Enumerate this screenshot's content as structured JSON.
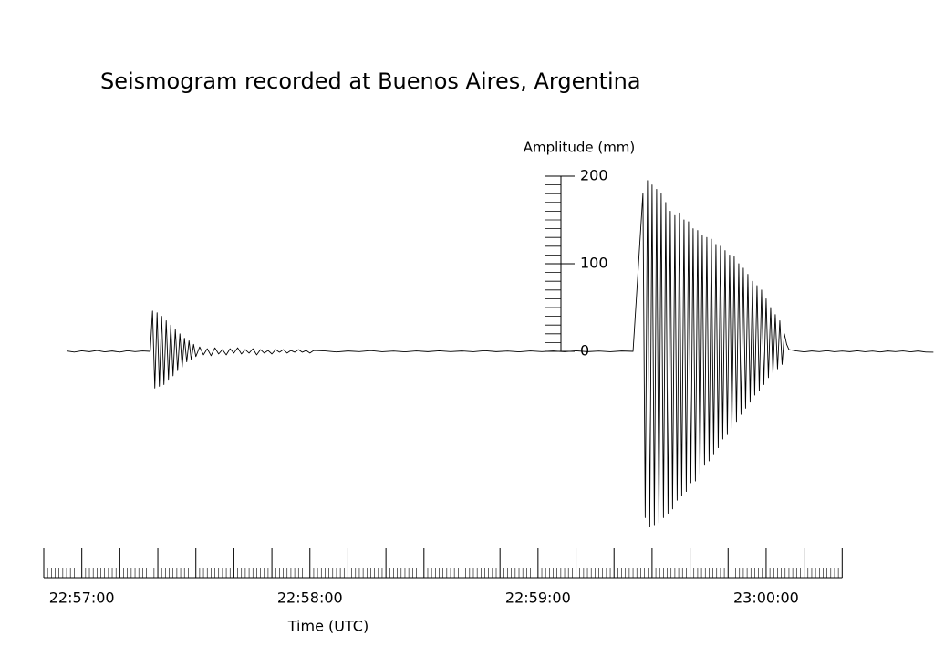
{
  "chart_data": {
    "type": "line",
    "title": "Seismogram recorded at Buenos Aires, Argentina",
    "y_label": "Amplitude (mm)",
    "x_label": "Time (UTC)",
    "color": "#000000",
    "x": [
      82616,
      82618,
      82620,
      82622,
      82624,
      82626,
      82628,
      82630,
      82632,
      82634,
      82636,
      82638,
      82638.6,
      82639.2,
      82639.8,
      82640.4,
      82641,
      82641.6,
      82642.2,
      82642.8,
      82643.4,
      82644,
      82644.6,
      82645.2,
      82645.8,
      82646.4,
      82647,
      82647.6,
      82648.2,
      82648.8,
      82649.4,
      82650,
      82651,
      82652,
      82653,
      82654,
      82655,
      82656,
      82657,
      82658,
      82659,
      82660,
      82661,
      82662,
      82663,
      82664,
      82665,
      82666,
      82667,
      82668,
      82669,
      82670,
      82671,
      82672,
      82673,
      82674,
      82675,
      82676,
      82677,
      82678,
      82679,
      82680,
      82681,
      82684,
      82687,
      82690,
      82693,
      82696,
      82699,
      82702,
      82705,
      82708,
      82711,
      82714,
      82717,
      82720,
      82723,
      82726,
      82729,
      82732,
      82735,
      82738,
      82741,
      82744,
      82747,
      82750,
      82753,
      82756,
      82759,
      82762,
      82765,
      82767.6,
      82768.2,
      82768.8,
      82769.4,
      82770,
      82770.6,
      82771.2,
      82771.8,
      82772.4,
      82773,
      82773.6,
      82774.2,
      82774.8,
      82775.4,
      82776,
      82776.6,
      82777.2,
      82777.8,
      82778.4,
      82779,
      82779.6,
      82780.2,
      82780.8,
      82781.4,
      82782,
      82782.6,
      82783.2,
      82783.8,
      82784.4,
      82785,
      82785.6,
      82786.2,
      82786.8,
      82787.4,
      82788,
      82788.6,
      82789.2,
      82789.8,
      82790.4,
      82791,
      82791.6,
      82792.2,
      82792.8,
      82793.4,
      82794,
      82794.6,
      82795.2,
      82795.8,
      82796.4,
      82797,
      82797.6,
      82798.2,
      82798.8,
      82799.4,
      82800,
      82800.6,
      82801.2,
      82801.8,
      82802.4,
      82803,
      82803.6,
      82804.2,
      82804.8,
      82805.4,
      82806,
      82808,
      82810,
      82812,
      82814,
      82816,
      82818,
      82820,
      82822,
      82824,
      82826,
      82828,
      82830,
      82832,
      82834,
      82836,
      82838,
      82840,
      82842,
      82844
    ],
    "values": [
      0.5,
      -0.8,
      0.6,
      -0.4,
      1.0,
      -0.6,
      0.4,
      -0.9,
      0.7,
      -0.3,
      0.5,
      0,
      46,
      -42,
      44,
      -40,
      40,
      -38,
      35,
      -32,
      30,
      -28,
      25,
      -22,
      20,
      -18,
      15,
      -12,
      12,
      -10,
      8,
      -6,
      5,
      -4,
      3,
      -5,
      4,
      -3,
      2,
      -4,
      3,
      -2,
      4,
      -3,
      2,
      -2,
      3,
      -4,
      2,
      -2,
      1,
      -3,
      2,
      -1,
      2,
      -2,
      1,
      -1,
      2,
      -1,
      1,
      -2,
      1,
      0.5,
      -0.7,
      0.4,
      -0.3,
      0.8,
      -0.5,
      0.3,
      -0.6,
      0.5,
      -0.4,
      0.6,
      -0.3,
      0.4,
      -0.5,
      0.7,
      -0.4,
      0.3,
      -0.6,
      0.5,
      -0.3,
      0.4,
      -0.5,
      0.6,
      -0.4,
      0.3,
      -0.5,
      0.4,
      0,
      180,
      -190,
      195,
      -200,
      190,
      -198,
      185,
      -196,
      180,
      -190,
      170,
      -185,
      160,
      -180,
      155,
      -170,
      158,
      -165,
      150,
      -160,
      148,
      -150,
      140,
      -148,
      138,
      -140,
      132,
      -130,
      130,
      -125,
      128,
      -118,
      122,
      -110,
      120,
      -100,
      115,
      -95,
      110,
      -88,
      108,
      -80,
      100,
      -72,
      95,
      -65,
      88,
      -58,
      80,
      -50,
      75,
      -45,
      70,
      -38,
      60,
      -30,
      50,
      -25,
      42,
      -20,
      35,
      -15,
      20,
      8,
      2,
      0.5,
      -0.6,
      0.4,
      -0.3,
      0.7,
      -0.5,
      0.3,
      -0.4,
      0.6,
      -0.5,
      0.3,
      -0.7,
      0.4,
      -0.3,
      0.5,
      -0.6,
      0.4,
      -0.8,
      -1
    ],
    "xlim": [
      82610,
      82820
    ],
    "xticks": [
      {
        "value": 82620,
        "label": "22:57:00"
      },
      {
        "value": 82680,
        "label": "22:58:00"
      },
      {
        "value": 82740,
        "label": "22:59:00"
      },
      {
        "value": 82800,
        "label": "23:00:00"
      }
    ],
    "xticks_major": [
      82610,
      82620,
      82630,
      82640,
      82650,
      82660,
      82670,
      82680,
      82690,
      82700,
      82710,
      82720,
      82730,
      82740,
      82750,
      82760,
      82770,
      82780,
      82790,
      82800,
      82810,
      82820
    ],
    "xticks_minor": [
      82611,
      82612,
      82613,
      82614,
      82615,
      82616,
      82617,
      82618,
      82619,
      82621,
      82622,
      82623,
      82624,
      82625,
      82626,
      82627,
      82628,
      82629,
      82631,
      82632,
      82633,
      82634,
      82635,
      82636,
      82637,
      82638,
      82639,
      82641,
      82642,
      82643,
      82644,
      82645,
      82646,
      82647,
      82648,
      82649,
      82651,
      82652,
      82653,
      82654,
      82655,
      82656,
      82657,
      82658,
      82659,
      82661,
      82662,
      82663,
      82664,
      82665,
      82666,
      82667,
      82668,
      82669,
      82671,
      82672,
      82673,
      82674,
      82675,
      82676,
      82677,
      82678,
      82679,
      82681,
      82682,
      82683,
      82684,
      82685,
      82686,
      82687,
      82688,
      82689,
      82691,
      82692,
      82693,
      82694,
      82695,
      82696,
      82697,
      82698,
      82699,
      82701,
      82702,
      82703,
      82704,
      82705,
      82706,
      82707,
      82708,
      82709,
      82711,
      82712,
      82713,
      82714,
      82715,
      82716,
      82717,
      82718,
      82719,
      82721,
      82722,
      82723,
      82724,
      82725,
      82726,
      82727,
      82728,
      82729,
      82731,
      82732,
      82733,
      82734,
      82735,
      82736,
      82737,
      82738,
      82739,
      82741,
      82742,
      82743,
      82744,
      82745,
      82746,
      82747,
      82748,
      82749,
      82751,
      82752,
      82753,
      82754,
      82755,
      82756,
      82757,
      82758,
      82759,
      82761,
      82762,
      82763,
      82764,
      82765,
      82766,
      82767,
      82768,
      82769,
      82771,
      82772,
      82773,
      82774,
      82775,
      82776,
      82777,
      82778,
      82779,
      82781,
      82782,
      82783,
      82784,
      82785,
      82786,
      82787,
      82788,
      82789,
      82791,
      82792,
      82793,
      82794,
      82795,
      82796,
      82797,
      82798,
      82799,
      82801,
      82802,
      82803,
      82804,
      82805,
      82806,
      82807,
      82808,
      82809,
      82811,
      82812,
      82813,
      82814,
      82815,
      82816,
      82817,
      82818,
      82819
    ],
    "ylim": [
      0,
      200
    ],
    "yticks": [
      0,
      100,
      200
    ],
    "yticks_minor": [
      10,
      20,
      30,
      40,
      50,
      60,
      70,
      80,
      90,
      110,
      120,
      130,
      140,
      150,
      160,
      170,
      180,
      190
    ]
  }
}
